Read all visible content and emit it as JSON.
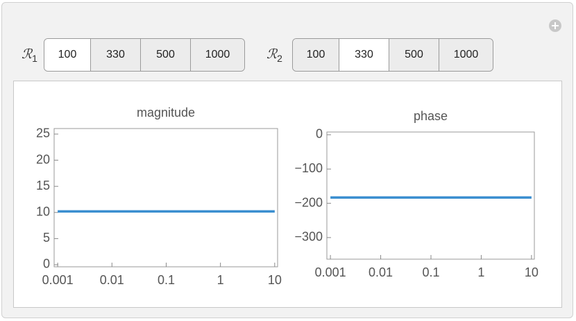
{
  "controls": [
    {
      "symbol": "ℛ",
      "subscript": "1",
      "options": [
        "100",
        "330",
        "500",
        "1000"
      ],
      "selected": 0
    },
    {
      "symbol": "ℛ",
      "subscript": "2",
      "options": [
        "100",
        "330",
        "500",
        "1000"
      ],
      "selected": 1
    }
  ],
  "chart_data": [
    {
      "type": "line",
      "title": "magnitude",
      "x": [
        0.001,
        10
      ],
      "values": [
        10.2,
        10.2
      ],
      "color": "#3b8fd0",
      "xscale": "log",
      "xlim": [
        0.00086,
        11.3
      ],
      "ylim": [
        -0.4,
        26.06
      ],
      "xticks": [
        0.001,
        0.01,
        0.1,
        1,
        10
      ],
      "yticks": [
        0,
        5,
        10,
        15,
        20,
        25
      ]
    },
    {
      "type": "line",
      "title": "phase",
      "x": [
        0.001,
        10
      ],
      "values": [
        -183,
        -183
      ],
      "color": "#3b8fd0",
      "xscale": "log",
      "xlim": [
        0.00085,
        11.4
      ],
      "ylim": [
        -363,
        8
      ],
      "xticks": [
        0.001,
        0.01,
        0.1,
        1,
        10
      ],
      "yticks": [
        0,
        {
          "value": -100,
          "label": "−100"
        },
        {
          "value": -200,
          "label": "−200"
        },
        {
          "value": -300,
          "label": "−300"
        }
      ]
    }
  ]
}
